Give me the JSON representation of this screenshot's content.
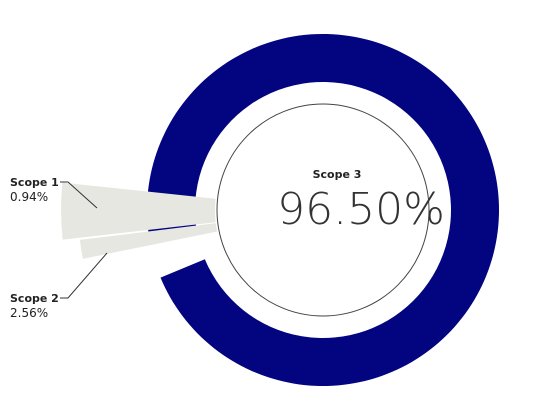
{
  "chart_data": {
    "type": "pie",
    "style": "donut",
    "center_label": {
      "name": "Scope 3",
      "value": "96.50%"
    },
    "slices": [
      {
        "name": "Scope 1",
        "label": "0.94%",
        "value": 0.94,
        "color": "#e7e7e2"
      },
      {
        "name": "Scope 2",
        "label": "2.56%",
        "value": 2.56,
        "color": "#e7e7e2"
      },
      {
        "name": "Scope 3",
        "label": "96.50%",
        "value": 96.5,
        "color": "#03047f"
      }
    ],
    "colors": {
      "accent": "#03047f",
      "minor_slices": "#e7e7e2",
      "text": "#222222",
      "leader_line": "#333333",
      "inner_circle_stroke": "#444444"
    }
  }
}
